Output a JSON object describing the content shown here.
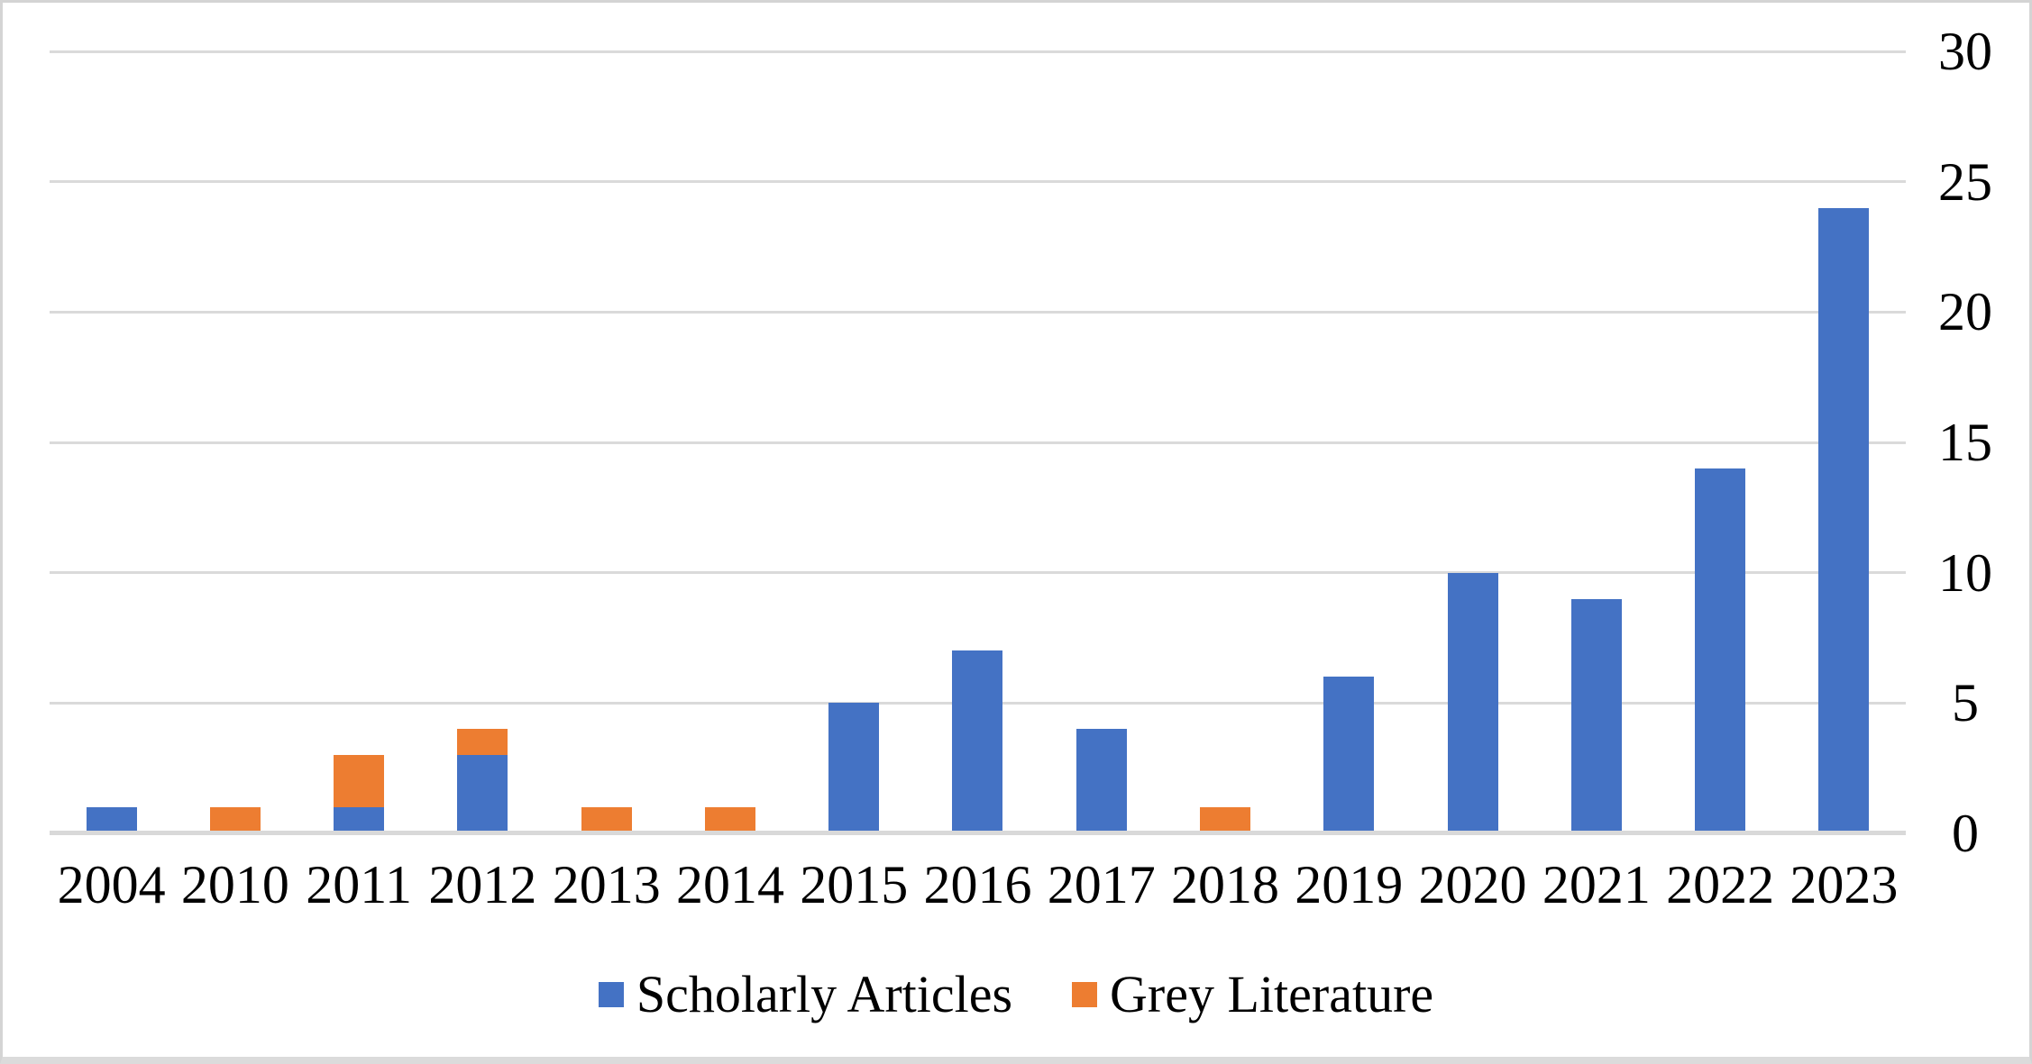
{
  "chart_data": {
    "type": "bar",
    "stacked": true,
    "title": "",
    "xlabel": "",
    "ylabel": "",
    "categories": [
      "2004",
      "2010",
      "2011",
      "2012",
      "2013",
      "2014",
      "2015",
      "2016",
      "2017",
      "2018",
      "2019",
      "2020",
      "2021",
      "2022",
      "2023"
    ],
    "series": [
      {
        "name": "Scholarly Articles",
        "color": "#4472C4",
        "values": [
          1,
          0,
          1,
          3,
          0,
          0,
          5,
          7,
          4,
          0,
          6,
          10,
          9,
          14,
          24
        ]
      },
      {
        "name": "Grey Literature",
        "color": "#ED7D31",
        "values": [
          0,
          1,
          2,
          1,
          1,
          1,
          0,
          0,
          0,
          1,
          0,
          0,
          0,
          0,
          0
        ]
      }
    ],
    "ylim": [
      0,
      30
    ],
    "y_ticks": [
      0,
      5,
      10,
      15,
      20,
      25,
      30
    ],
    "grid": "horizontal",
    "legend_position": "bottom"
  },
  "colors": {
    "background": "#FFFFFF",
    "gridline": "#DADADA",
    "axis_line": "#D9D9D9",
    "frame_border": "#D4D4D4",
    "text": "#000000",
    "series_blue": "#4472C4",
    "series_orange": "#ED7D31"
  }
}
